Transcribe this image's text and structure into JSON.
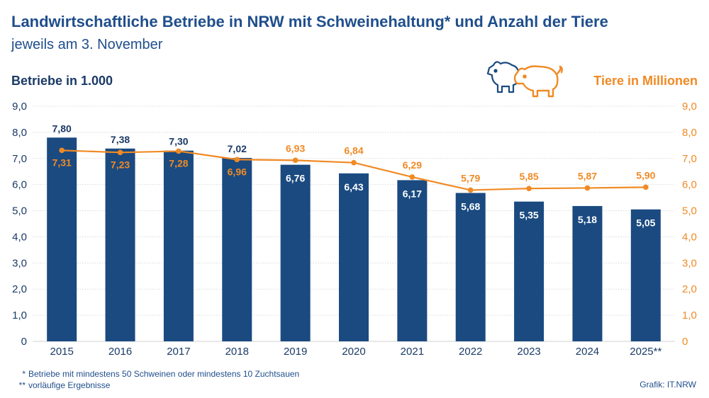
{
  "header": {
    "title": "Landwirtschaftliche Betriebe in NRW mit Schweinehaltung* und Anzahl der Tiere",
    "subtitle": "jeweils am 3. November"
  },
  "footer": {
    "notes": [
      {
        "mark": "*",
        "text": "Betriebe mit mindestens 50 Schweinen oder mindestens 10 Zuchtsauen"
      },
      {
        "mark": "**",
        "text": "vorläufige Ergebnisse"
      }
    ],
    "source": "Grafik: IT.NRW"
  },
  "icons": {
    "pig": "pig-icon"
  },
  "colors": {
    "bar": "#1a4a80",
    "line": "#f08a24",
    "title": "#1f4e8c",
    "axis_left": "#1a3a66",
    "axis_right": "#f08a24",
    "grid": "#d9d9d9"
  },
  "chart_data": {
    "type": "bar",
    "categories": [
      "2015",
      "2016",
      "2017",
      "2018",
      "2019",
      "2020",
      "2021",
      "2022",
      "2023",
      "2024",
      "2025**"
    ],
    "series": [
      {
        "name": "Betriebe in 1.000",
        "type": "bar",
        "axis": "left",
        "values": [
          7.8,
          7.38,
          7.3,
          7.02,
          6.76,
          6.43,
          6.17,
          5.68,
          5.35,
          5.18,
          5.05
        ],
        "labels": [
          "7,80",
          "7,38",
          "7,30",
          "7,02",
          "6,76",
          "6,43",
          "6,17",
          "5,68",
          "5,35",
          "5,18",
          "5,05"
        ]
      },
      {
        "name": "Tiere in Millionen",
        "type": "line",
        "axis": "right",
        "values": [
          7.31,
          7.23,
          7.28,
          6.96,
          6.93,
          6.84,
          6.29,
          5.79,
          5.85,
          5.87,
          5.9
        ],
        "labels": [
          "7,31",
          "7,23",
          "7,28",
          "6,96",
          "6,93",
          "6,84",
          "6,29",
          "5,79",
          "5,85",
          "5,87",
          "5,90"
        ]
      }
    ],
    "ylabel_left": "Betriebe in 1.000",
    "ylabel_right": "Tiere in Millionen",
    "ylim": [
      0,
      9
    ],
    "yticks": [
      "0",
      "1,0",
      "2,0",
      "3,0",
      "4,0",
      "5,0",
      "6,0",
      "7,0",
      "8,0",
      "9,0"
    ],
    "grid": true
  }
}
